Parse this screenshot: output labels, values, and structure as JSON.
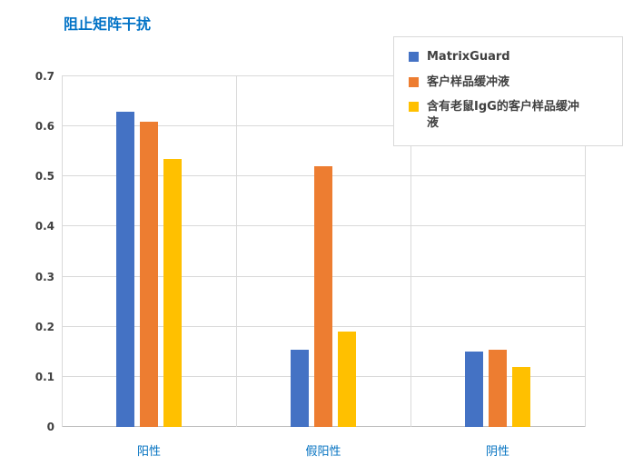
{
  "title": "阻止矩阵干扰",
  "colors": {
    "title_text": "#0072c6",
    "category_text": "#0070c0",
    "tick_text": "#404040",
    "gridline": "#d9d9d9",
    "axis_line": "#bfbfbf"
  },
  "chart_data": {
    "type": "bar",
    "title": "阻止矩阵干扰",
    "categories": [
      "阳性",
      "假阳性",
      "阴性"
    ],
    "series": [
      {
        "name": "MatrixGuard",
        "color": "#4472c4",
        "values": [
          0.63,
          0.155,
          0.15
        ]
      },
      {
        "name": "客户样品缓冲液",
        "color": "#ed7d31",
        "values": [
          0.61,
          0.52,
          0.155
        ]
      },
      {
        "name": "含有老鼠IgG的客户样品缓冲液",
        "color": "#ffc000",
        "values": [
          0.535,
          0.19,
          0.12
        ]
      }
    ],
    "xlabel": "",
    "ylabel": "",
    "ylim": [
      0,
      0.7
    ],
    "yticks": [
      0,
      0.1,
      0.2,
      0.3,
      0.4,
      0.5,
      0.6,
      0.7
    ],
    "grid": true,
    "legend_position": "top-right"
  }
}
